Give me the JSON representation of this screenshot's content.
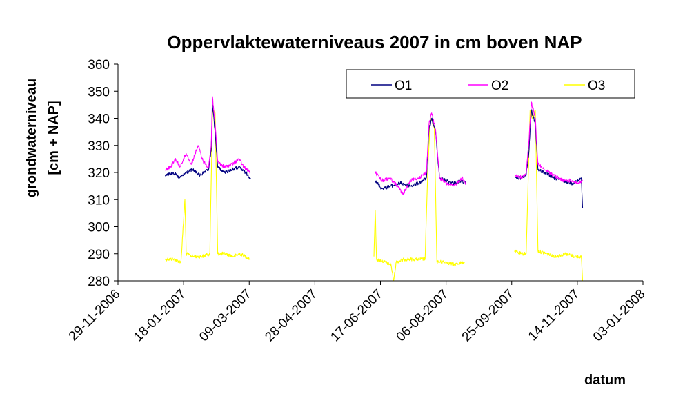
{
  "chart_data": {
    "type": "line",
    "title": "Oppervlaktewaterniveaus 2007 in cm boven NAP",
    "ylabel_line1": "grondwaterniveau",
    "ylabel_line2": "[cm + NAP]",
    "xlabel": "datum",
    "ylim": [
      280,
      360
    ],
    "yticks": [
      "280",
      "290",
      "300",
      "310",
      "320",
      "330",
      "340",
      "350",
      "360"
    ],
    "xlim": [
      "2006-11-29",
      "2008-01-03"
    ],
    "xticks": [
      "29-11-2006",
      "18-01-2007",
      "09-03-2007",
      "28-04-2007",
      "17-06-2007",
      "06-08-2007",
      "25-09-2007",
      "14-11-2007",
      "03-01-2008"
    ],
    "grid": false,
    "legend": {
      "placement": "top-right"
    },
    "colors": {
      "O1": "#000080",
      "O2": "#ff00ff",
      "O3": "#ffff00"
    },
    "series": [
      {
        "name": "O1",
        "points": [
          [
            "2007-01-04",
            319
          ],
          [
            "2007-01-10",
            320
          ],
          [
            "2007-01-15",
            318
          ],
          [
            "2007-01-20",
            320
          ],
          [
            "2007-01-25",
            321
          ],
          [
            "2007-01-30",
            319
          ],
          [
            "2007-02-03",
            320
          ],
          [
            "2007-02-06",
            321
          ],
          [
            "2007-02-08",
            328
          ],
          [
            "2007-02-09",
            345
          ],
          [
            "2007-02-11",
            335
          ],
          [
            "2007-02-13",
            322
          ],
          [
            "2007-02-18",
            320
          ],
          [
            "2007-02-24",
            321
          ],
          [
            "2007-03-01",
            322
          ],
          [
            "2007-03-06",
            320
          ],
          [
            "2007-03-10",
            318
          ],
          [
            "2007-06-13",
            317
          ],
          [
            "2007-06-18",
            314
          ],
          [
            "2007-06-25",
            315
          ],
          [
            "2007-07-02",
            316
          ],
          [
            "2007-07-10",
            315
          ],
          [
            "2007-07-16",
            316
          ],
          [
            "2007-07-22",
            318
          ],
          [
            "2007-07-24",
            336
          ],
          [
            "2007-07-26",
            340
          ],
          [
            "2007-07-29",
            335
          ],
          [
            "2007-08-01",
            318
          ],
          [
            "2007-08-06",
            317
          ],
          [
            "2007-08-12",
            316
          ],
          [
            "2007-08-18",
            317
          ],
          [
            "2007-08-21",
            316
          ],
          [
            "2007-09-28",
            318
          ],
          [
            "2007-10-03",
            318
          ],
          [
            "2007-10-06",
            319
          ],
          [
            "2007-10-08",
            327
          ],
          [
            "2007-10-10",
            343
          ],
          [
            "2007-10-13",
            338
          ],
          [
            "2007-10-15",
            321
          ],
          [
            "2007-10-20",
            320
          ],
          [
            "2007-10-27",
            318
          ],
          [
            "2007-11-03",
            317
          ],
          [
            "2007-11-10",
            316
          ],
          [
            "2007-11-15",
            317
          ],
          [
            "2007-11-17",
            318
          ],
          [
            "2007-11-18",
            307
          ]
        ]
      },
      {
        "name": "O2",
        "points": [
          [
            "2007-01-04",
            321
          ],
          [
            "2007-01-08",
            322
          ],
          [
            "2007-01-12",
            325
          ],
          [
            "2007-01-15",
            322
          ],
          [
            "2007-01-20",
            327
          ],
          [
            "2007-01-24",
            323
          ],
          [
            "2007-01-29",
            330
          ],
          [
            "2007-02-02",
            324
          ],
          [
            "2007-02-06",
            322
          ],
          [
            "2007-02-08",
            330
          ],
          [
            "2007-02-09",
            348
          ],
          [
            "2007-02-11",
            338
          ],
          [
            "2007-02-13",
            324
          ],
          [
            "2007-02-18",
            322
          ],
          [
            "2007-02-24",
            323
          ],
          [
            "2007-03-01",
            325
          ],
          [
            "2007-03-05",
            322
          ],
          [
            "2007-03-10",
            320
          ],
          [
            "2007-06-13",
            320
          ],
          [
            "2007-06-18",
            317
          ],
          [
            "2007-06-24",
            318
          ],
          [
            "2007-06-30",
            315
          ],
          [
            "2007-07-04",
            312
          ],
          [
            "2007-07-10",
            317
          ],
          [
            "2007-07-16",
            318
          ],
          [
            "2007-07-22",
            320
          ],
          [
            "2007-07-24",
            338
          ],
          [
            "2007-07-26",
            342
          ],
          [
            "2007-07-29",
            336
          ],
          [
            "2007-08-01",
            318
          ],
          [
            "2007-08-06",
            316
          ],
          [
            "2007-08-12",
            315
          ],
          [
            "2007-08-18",
            318
          ],
          [
            "2007-08-21",
            316
          ],
          [
            "2007-09-28",
            319
          ],
          [
            "2007-10-03",
            318
          ],
          [
            "2007-10-06",
            320
          ],
          [
            "2007-10-08",
            331
          ],
          [
            "2007-10-10",
            346
          ],
          [
            "2007-10-13",
            340
          ],
          [
            "2007-10-15",
            323
          ],
          [
            "2007-10-20",
            321
          ],
          [
            "2007-10-27",
            319
          ],
          [
            "2007-11-03",
            317
          ],
          [
            "2007-11-10",
            317
          ],
          [
            "2007-11-15",
            316
          ],
          [
            "2007-11-18",
            317
          ]
        ]
      },
      {
        "name": "O3",
        "points": [
          [
            "2007-01-04",
            288
          ],
          [
            "2007-01-10",
            288
          ],
          [
            "2007-01-16",
            287
          ],
          [
            "2007-01-19",
            310
          ],
          [
            "2007-01-20",
            290
          ],
          [
            "2007-01-25",
            289
          ],
          [
            "2007-02-01",
            289
          ],
          [
            "2007-02-07",
            290
          ],
          [
            "2007-02-09",
            343
          ],
          [
            "2007-02-11",
            342
          ],
          [
            "2007-02-13",
            290
          ],
          [
            "2007-02-19",
            290
          ],
          [
            "2007-02-25",
            289
          ],
          [
            "2007-03-02",
            290
          ],
          [
            "2007-03-10",
            288
          ],
          [
            "2007-06-12",
            289
          ],
          [
            "2007-06-13",
            306
          ],
          [
            "2007-06-14",
            288
          ],
          [
            "2007-06-20",
            287
          ],
          [
            "2007-06-25",
            286
          ],
          [
            "2007-06-27",
            280
          ],
          [
            "2007-06-29",
            287
          ],
          [
            "2007-07-06",
            288
          ],
          [
            "2007-07-14",
            288
          ],
          [
            "2007-07-21",
            288
          ],
          [
            "2007-07-23",
            320
          ],
          [
            "2007-07-25",
            340
          ],
          [
            "2007-07-28",
            337
          ],
          [
            "2007-07-30",
            287
          ],
          [
            "2007-08-05",
            287
          ],
          [
            "2007-08-12",
            286
          ],
          [
            "2007-08-20",
            287
          ],
          [
            "2007-09-27",
            291
          ],
          [
            "2007-10-02",
            290
          ],
          [
            "2007-10-06",
            290
          ],
          [
            "2007-10-09",
            343
          ],
          [
            "2007-10-11",
            340
          ],
          [
            "2007-10-13",
            343
          ],
          [
            "2007-10-15",
            291
          ],
          [
            "2007-10-22",
            290
          ],
          [
            "2007-10-29",
            289
          ],
          [
            "2007-11-05",
            290
          ],
          [
            "2007-11-12",
            289
          ],
          [
            "2007-11-17",
            289
          ],
          [
            "2007-11-18",
            280
          ]
        ]
      }
    ]
  }
}
